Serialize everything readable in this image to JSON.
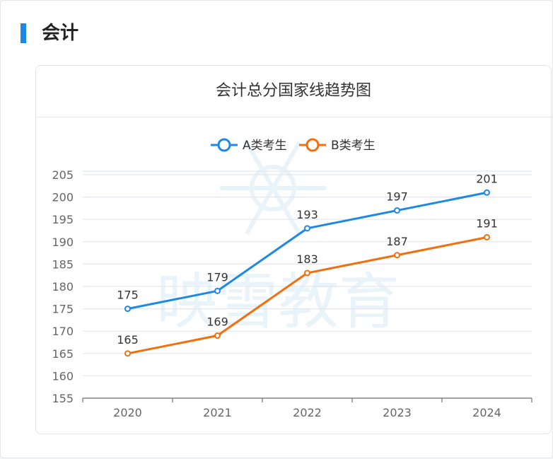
{
  "section": {
    "title": "会计"
  },
  "colors": {
    "accent": "#1e88e5",
    "series_a": "#1e88e5",
    "series_b": "#f26f0d"
  },
  "chart_data": {
    "type": "line",
    "title": "会计总分国家线趋势图",
    "xlabel": "",
    "ylabel": "",
    "categories": [
      "2020",
      "2021",
      "2022",
      "2023",
      "2024"
    ],
    "ylim": [
      155,
      205
    ],
    "yticks": [
      155,
      160,
      165,
      170,
      175,
      180,
      185,
      190,
      195,
      200,
      205
    ],
    "grid": true,
    "legend": "top-center",
    "series": [
      {
        "name": "A类考生",
        "color": "#1e88e5",
        "values": [
          175,
          179,
          193,
          197,
          201
        ]
      },
      {
        "name": "B类考生",
        "color": "#f26f0d",
        "values": [
          165,
          169,
          183,
          187,
          191
        ]
      }
    ]
  },
  "watermark": {
    "text": "映雪教育"
  }
}
